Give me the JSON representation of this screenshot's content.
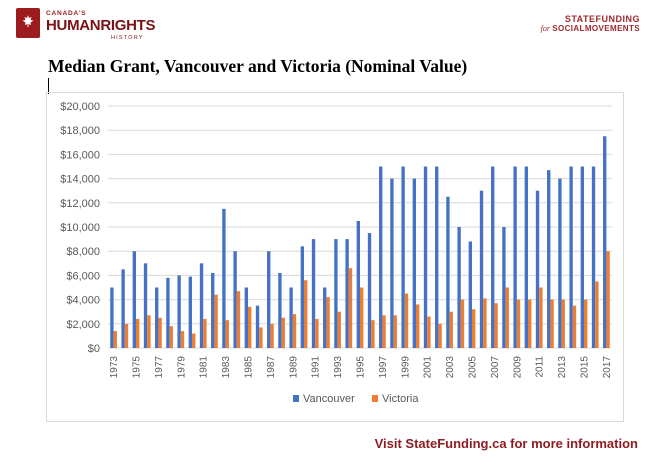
{
  "header": {
    "left_logo": {
      "line1": "CANADA'S",
      "line2": "HUMANRIGHTS",
      "line3": "HISTORY"
    },
    "right_logo": {
      "line1": "STATEFUNDING",
      "line2_for": "for",
      "line2_sm": "SOCIALMOVEMENTS"
    }
  },
  "footer": {
    "text": "Visit StateFunding.ca for more information"
  },
  "colors": {
    "vancouver": "#4472c4",
    "victoria": "#ed7d31",
    "brand": "#9b1b1f"
  },
  "chart_data": {
    "type": "bar",
    "title": "Median Grant, Vancouver and Victoria (Nominal Value)",
    "ylim": [
      0,
      20000
    ],
    "yticks": [
      0,
      2000,
      4000,
      6000,
      8000,
      10000,
      12000,
      14000,
      16000,
      18000,
      20000
    ],
    "ytick_labels": [
      "$0",
      "$2,000",
      "$4,000",
      "$6,000",
      "$8,000",
      "$10,000",
      "$12,000",
      "$14,000",
      "$16,000",
      "$18,000",
      "$20,000"
    ],
    "categories": [
      "1973",
      "1974",
      "1975",
      "1976",
      "1977",
      "1978",
      "1979",
      "1980",
      "1981",
      "1982",
      "1983",
      "1984",
      "1985",
      "1986",
      "1987",
      "1988",
      "1989",
      "1990",
      "1991",
      "1992",
      "1993",
      "1994",
      "1995",
      "1996",
      "1997",
      "1998",
      "1999",
      "2000",
      "2001",
      "2002",
      "2003",
      "2004",
      "2005",
      "2006",
      "2007",
      "2008",
      "2009",
      "2010",
      "2011",
      "2012",
      "2013",
      "2014",
      "2015",
      "2016",
      "2017"
    ],
    "x_labels_shown": [
      "1973",
      "1975",
      "1977",
      "1979",
      "1981",
      "1983",
      "1985",
      "1987",
      "1989",
      "1991",
      "1993",
      "1995",
      "1997",
      "1999",
      "2001",
      "2003",
      "2005",
      "2007",
      "2009",
      "2011",
      "2013",
      "2015",
      "2017"
    ],
    "legend_position": "bottom",
    "grid": true,
    "series": [
      {
        "name": "Vancouver",
        "values": [
          5000,
          6500,
          8000,
          7000,
          5000,
          5800,
          6000,
          5900,
          7000,
          6200,
          11500,
          8000,
          5000,
          3500,
          8000,
          6200,
          5000,
          8400,
          9000,
          5000,
          9000,
          9000,
          10500,
          9500,
          15000,
          14000,
          15000,
          14000,
          15000,
          15000,
          12500,
          10000,
          8800,
          13000,
          15000,
          10000,
          15000,
          15000,
          13000,
          14700,
          14000,
          15000,
          15000,
          15000,
          17500
        ]
      },
      {
        "name": "Victoria",
        "values": [
          1400,
          2000,
          2400,
          2700,
          2500,
          1800,
          1400,
          1200,
          2400,
          4400,
          2300,
          4700,
          3400,
          1700,
          2000,
          2500,
          2800,
          5600,
          2400,
          4200,
          3000,
          6600,
          5000,
          2300,
          2700,
          2700,
          4500,
          3600,
          2600,
          2000,
          3000,
          4000,
          3200,
          4100,
          3700,
          5000,
          4000,
          4000,
          5000,
          4000,
          4000,
          3500,
          4000,
          5500,
          8000
        ]
      }
    ]
  }
}
